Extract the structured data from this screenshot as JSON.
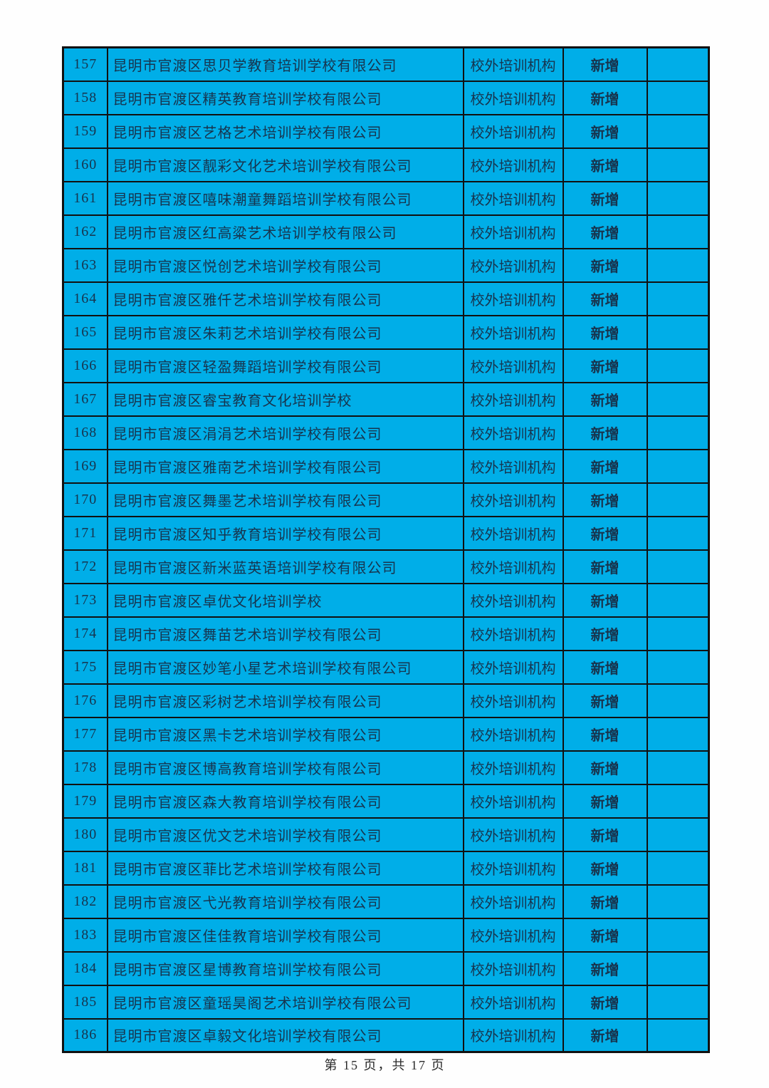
{
  "colors": {
    "cell_bg": "#00AEE8",
    "grid": "#111111",
    "text": "#17344E",
    "status_red": "#C01020",
    "page_bg": "#FEFEFE",
    "footer_text": "#2A2A2A"
  },
  "footer": {
    "text": "第 15 页，共 17 页"
  },
  "table": {
    "rows": [
      {
        "no": "157",
        "name": "昆明市官渡区思贝学教育培训学校有限公司",
        "type": "校外培训机构",
        "status": "新增",
        "remark": ""
      },
      {
        "no": "158",
        "name": "昆明市官渡区精英教育培训学校有限公司",
        "type": "校外培训机构",
        "status": "新增",
        "remark": ""
      },
      {
        "no": "159",
        "name": "昆明市官渡区艺格艺术培训学校有限公司",
        "type": "校外培训机构",
        "status": "新增",
        "remark": ""
      },
      {
        "no": "160",
        "name": "昆明市官渡区靓彩文化艺术培训学校有限公司",
        "type": "校外培训机构",
        "status": "新增",
        "remark": ""
      },
      {
        "no": "161",
        "name": "昆明市官渡区嘻味潮童舞蹈培训学校有限公司",
        "type": "校外培训机构",
        "status": "新增",
        "remark": ""
      },
      {
        "no": "162",
        "name": "昆明市官渡区红高粱艺术培训学校有限公司",
        "type": "校外培训机构",
        "status": "新增",
        "remark": ""
      },
      {
        "no": "163",
        "name": "昆明市官渡区悦创艺术培训学校有限公司",
        "type": "校外培训机构",
        "status": "新增",
        "remark": ""
      },
      {
        "no": "164",
        "name": "昆明市官渡区雅仟艺术培训学校有限公司",
        "type": "校外培训机构",
        "status": "新增",
        "remark": ""
      },
      {
        "no": "165",
        "name": "昆明市官渡区朱莉艺术培训学校有限公司",
        "type": "校外培训机构",
        "status": "新增",
        "remark": ""
      },
      {
        "no": "166",
        "name": "昆明市官渡区轻盈舞蹈培训学校有限公司",
        "type": "校外培训机构",
        "status": "新增",
        "remark": ""
      },
      {
        "no": "167",
        "name": "昆明市官渡区睿宝教育文化培训学校",
        "type": "校外培训机构",
        "status": "新增",
        "remark": ""
      },
      {
        "no": "168",
        "name": "昆明市官渡区涓涓艺术培训学校有限公司",
        "type": "校外培训机构",
        "status": "新增",
        "remark": ""
      },
      {
        "no": "169",
        "name": "昆明市官渡区雅南艺术培训学校有限公司",
        "type": "校外培训机构",
        "status": "新增",
        "remark": ""
      },
      {
        "no": "170",
        "name": "昆明市官渡区舞墨艺术培训学校有限公司",
        "type": "校外培训机构",
        "status": "新增",
        "remark": ""
      },
      {
        "no": "171",
        "name": "昆明市官渡区知乎教育培训学校有限公司",
        "type": "校外培训机构",
        "status": "新增",
        "remark": ""
      },
      {
        "no": "172",
        "name": "昆明市官渡区新米蓝英语培训学校有限公司",
        "type": "校外培训机构",
        "status": "新增",
        "remark": ""
      },
      {
        "no": "173",
        "name": "昆明市官渡区卓优文化培训学校",
        "type": "校外培训机构",
        "status": "新增",
        "remark": ""
      },
      {
        "no": "174",
        "name": "昆明市官渡区舞苗艺术培训学校有限公司",
        "type": "校外培训机构",
        "status": "新增",
        "remark": ""
      },
      {
        "no": "175",
        "name": "昆明市官渡区妙笔小星艺术培训学校有限公司",
        "type": "校外培训机构",
        "status": "新增",
        "remark": ""
      },
      {
        "no": "176",
        "name": "昆明市官渡区彩树艺术培训学校有限公司",
        "type": "校外培训机构",
        "status": "新增",
        "remark": ""
      },
      {
        "no": "177",
        "name": "昆明市官渡区黑卡艺术培训学校有限公司",
        "type": "校外培训机构",
        "status": "新增",
        "remark": ""
      },
      {
        "no": "178",
        "name": "昆明市官渡区博高教育培训学校有限公司",
        "type": "校外培训机构",
        "status": "新增",
        "remark": ""
      },
      {
        "no": "179",
        "name": "昆明市官渡区森大教育培训学校有限公司",
        "type": "校外培训机构",
        "status": "新增",
        "remark": ""
      },
      {
        "no": "180",
        "name": "昆明市官渡区优文艺术培训学校有限公司",
        "type": "校外培训机构",
        "status": "新增",
        "remark": ""
      },
      {
        "no": "181",
        "name": "昆明市官渡区菲比艺术培训学校有限公司",
        "type": "校外培训机构",
        "status": "新增",
        "remark": ""
      },
      {
        "no": "182",
        "name": "昆明市官渡区弋光教育培训学校有限公司",
        "type": "校外培训机构",
        "status": "新增",
        "remark": ""
      },
      {
        "no": "183",
        "name": "昆明市官渡区佳佳教育培训学校有限公司",
        "type": "校外培训机构",
        "status": "新增",
        "remark": ""
      },
      {
        "no": "184",
        "name": "昆明市官渡区星博教育培训学校有限公司",
        "type": "校外培训机构",
        "status": "新增",
        "remark": ""
      },
      {
        "no": "185",
        "name": "昆明市官渡区童瑶昊阁艺术培训学校有限公司",
        "type": "校外培训机构",
        "status": "新增",
        "remark": ""
      },
      {
        "no": "186",
        "name": "昆明市官渡区卓毅文化培训学校有限公司",
        "type": "校外培训机构",
        "status": "新增",
        "remark": ""
      }
    ]
  }
}
